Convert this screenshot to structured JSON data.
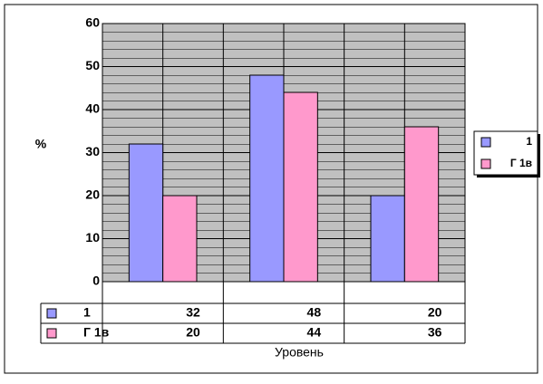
{
  "chart_data": {
    "type": "bar",
    "y_label": "%",
    "x_label": "Уровень",
    "categories": [
      null,
      null,
      null
    ],
    "series": [
      {
        "name": "1",
        "color": "#9999ff",
        "values": [
          32,
          48,
          20
        ]
      },
      {
        "name": "Г 1в",
        "color": "#ff99cc",
        "values": [
          20,
          44,
          36
        ]
      }
    ],
    "ylim": [
      0,
      60
    ],
    "yticks": [
      0,
      10,
      20,
      30,
      40,
      50,
      60
    ],
    "grid": true,
    "legend": "right",
    "data_table": true
  }
}
